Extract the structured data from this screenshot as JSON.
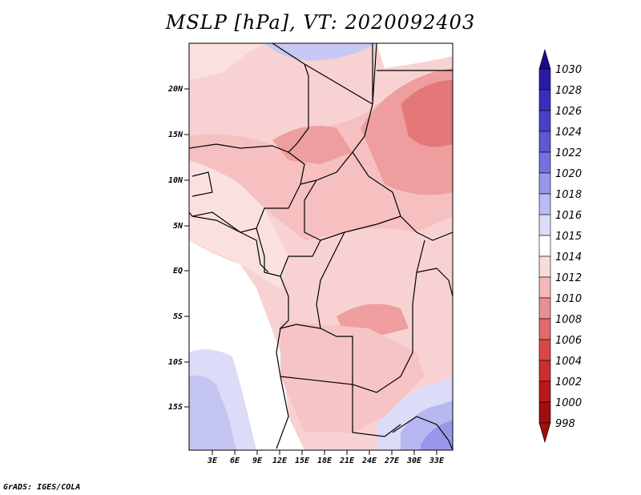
{
  "title": "MSLP [hPa], VT: 2020092403",
  "credit": "GrADS: IGES/COLA",
  "axes": {
    "lat_labels": [
      "20N",
      "15N",
      "10N",
      "5N",
      "EQ",
      "5S",
      "10S",
      "15S"
    ],
    "lon_labels": [
      "3E",
      "6E",
      "9E",
      "12E",
      "15E",
      "18E",
      "21E",
      "24E",
      "27E",
      "30E",
      "33E"
    ]
  },
  "colorbar": {
    "levels": [
      "1030",
      "1028",
      "1026",
      "1024",
      "1022",
      "1020",
      "1018",
      "1016",
      "1015",
      "1014",
      "1012",
      "1010",
      "1008",
      "1006",
      "1004",
      "1002",
      "1000",
      "998"
    ],
    "colors": [
      "#1a0a8c",
      "#2a1aa8",
      "#3a2cbc",
      "#4a40c8",
      "#5e58d4",
      "#7470e0",
      "#9a96ec",
      "#bcbcf4",
      "#dcdcfa",
      "#ffffff",
      "#fadada",
      "#f4b8b8",
      "#e89090",
      "#e06a6a",
      "#d84848",
      "#cc2e2e",
      "#b81a1a",
      "#a00e0e"
    ]
  },
  "palette": {
    "pink_light": "#fbe0e0",
    "pink_mid": "#f6c4c4",
    "pink_dark": "#ed9e9e",
    "red_core": "#e47878",
    "blue_light": "#dcdcf8",
    "blue_mid": "#b8b8f0",
    "blue_dark": "#9a96ec"
  }
}
